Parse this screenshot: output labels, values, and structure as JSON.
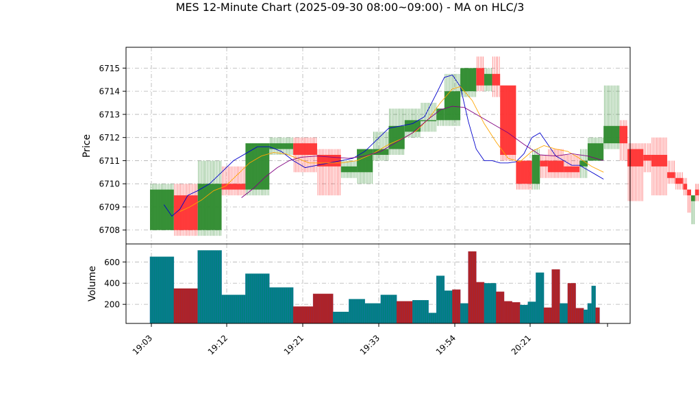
{
  "title": "MES 12-Minute Chart (2025-09-30 08:00~09:00) - MA on HLC/3",
  "colors": {
    "up": "#2e8b2e",
    "down": "#ff3333",
    "ma_fast": "#0000cc",
    "ma_mid": "#ffa500",
    "ma_slow": "#800080",
    "volume_up": "#008080",
    "volume_down": "#b22222",
    "grid": "#b0b0b0"
  },
  "chart_data": [
    {
      "type": "candlestick",
      "ylabel": "Price",
      "ylim": [
        6707.4,
        6715.9
      ],
      "yticks": [
        6708,
        6709,
        6710,
        6711,
        6712,
        6713,
        6714,
        6715
      ],
      "xticks": [
        "19:03",
        "19:12",
        "19:21",
        "19:33",
        "19:54",
        "20:21"
      ],
      "grid": true,
      "candles": [
        {
          "o": 6708.0,
          "c": 6709.75,
          "h": 6710.0,
          "l": 6708.0
        },
        {
          "o": 6709.5,
          "c": 6708.0,
          "h": 6710.0,
          "l": 6707.75
        },
        {
          "o": 6708.0,
          "c": 6710.0,
          "h": 6711.0,
          "l": 6707.75
        },
        {
          "o": 6710.0,
          "c": 6709.75,
          "h": 6710.75,
          "l": 6709.5
        },
        {
          "o": 6709.75,
          "c": 6711.75,
          "h": 6711.75,
          "l": 6709.5
        },
        {
          "o": 6711.5,
          "c": 6711.75,
          "h": 6712.0,
          "l": 6711.25
        },
        {
          "o": 6711.75,
          "c": 6711.25,
          "h": 6712.0,
          "l": 6710.5
        },
        {
          "o": 6711.25,
          "c": 6710.75,
          "h": 6711.5,
          "l": 6709.5
        },
        {
          "o": 6710.5,
          "c": 6710.75,
          "h": 6711.0,
          "l": 6710.25
        },
        {
          "o": 6710.5,
          "c": 6711.5,
          "h": 6711.5,
          "l": 6710.0
        },
        {
          "o": 6711.25,
          "c": 6711.5,
          "h": 6712.25,
          "l": 6711.0
        },
        {
          "o": 6711.5,
          "c": 6712.5,
          "h": 6713.25,
          "l": 6711.25
        },
        {
          "o": 6712.25,
          "c": 6712.75,
          "h": 6713.25,
          "l": 6712.0
        },
        {
          "o": 6712.75,
          "c": 6712.75,
          "h": 6713.5,
          "l": 6712.25
        },
        {
          "o": 6712.75,
          "c": 6713.25,
          "h": 6713.25,
          "l": 6712.5
        },
        {
          "o": 6712.75,
          "c": 6714.0,
          "h": 6714.75,
          "l": 6712.5
        },
        {
          "o": 6714.0,
          "c": 6715.0,
          "h": 6715.0,
          "l": 6713.75
        },
        {
          "o": 6715.0,
          "c": 6714.25,
          "h": 6715.5,
          "l": 6714.0
        },
        {
          "o": 6714.25,
          "c": 6714.75,
          "h": 6715.0,
          "l": 6714.0
        },
        {
          "o": 6714.75,
          "c": 6714.25,
          "h": 6715.5,
          "l": 6713.75
        },
        {
          "o": 6714.25,
          "c": 6711.25,
          "h": 6714.25,
          "l": 6711.0
        },
        {
          "o": 6711.0,
          "c": 6710.0,
          "h": 6711.0,
          "l": 6709.75
        },
        {
          "o": 6710.0,
          "c": 6711.25,
          "h": 6711.5,
          "l": 6709.75
        },
        {
          "o": 6711.0,
          "c": 6710.75,
          "h": 6711.25,
          "l": 6710.25
        },
        {
          "o": 6711.0,
          "c": 6710.5,
          "h": 6711.5,
          "l": 6710.25
        },
        {
          "o": 6710.75,
          "c": 6710.5,
          "h": 6711.25,
          "l": 6710.25
        },
        {
          "o": 6710.75,
          "c": 6711.0,
          "h": 6711.5,
          "l": 6710.25
        },
        {
          "o": 6711.0,
          "c": 6711.75,
          "h": 6712.0,
          "l": 6711.0
        },
        {
          "o": 6711.75,
          "c": 6712.5,
          "h": 6714.25,
          "l": 6711.5
        },
        {
          "o": 6712.5,
          "c": 6711.75,
          "h": 6712.75,
          "l": 6711.0
        },
        {
          "o": 6711.5,
          "c": 6710.75,
          "h": 6711.75,
          "l": 6709.25
        },
        {
          "o": 6711.25,
          "c": 6711.0,
          "h": 6711.75,
          "l": 6710.5
        },
        {
          "o": 6711.25,
          "c": 6710.75,
          "h": 6712.0,
          "l": 6709.5
        },
        {
          "o": 6710.5,
          "c": 6710.25,
          "h": 6711.0,
          "l": 6710.0
        },
        {
          "o": 6710.25,
          "c": 6710.0,
          "h": 6710.5,
          "l": 6709.75
        },
        {
          "o": 6710.0,
          "c": 6709.75,
          "h": 6710.25,
          "l": 6709.5
        },
        {
          "o": 6709.75,
          "c": 6709.5,
          "h": 6709.75,
          "l": 6708.75
        },
        {
          "o": 6709.25,
          "c": 6709.5,
          "h": 6709.5,
          "l": 6708.25
        },
        {
          "o": 6709.75,
          "c": 6709.5,
          "h": 6710.0,
          "l": 6709.25
        }
      ],
      "spans": [
        6,
        6,
        6,
        6,
        6,
        6,
        6,
        6,
        4,
        4,
        4,
        4,
        4,
        4,
        2,
        4,
        4,
        2,
        2,
        2,
        4,
        4,
        2,
        2,
        4,
        4,
        2,
        4,
        4,
        2,
        4,
        2,
        4,
        2,
        2,
        1,
        1,
        1,
        1
      ],
      "ma_fast": [
        [
          3.5,
          6709.1
        ],
        [
          5.5,
          6708.6
        ],
        [
          7.5,
          6708.9
        ],
        [
          9.5,
          6709.5
        ],
        [
          12,
          6709.7
        ],
        [
          15,
          6710.0
        ],
        [
          18,
          6710.5
        ],
        [
          21,
          6711.0
        ],
        [
          24,
          6711.3
        ],
        [
          27,
          6711.6
        ],
        [
          30,
          6711.6
        ],
        [
          33,
          6711.4
        ],
        [
          36,
          6711.0
        ],
        [
          39,
          6710.7
        ],
        [
          42,
          6710.8
        ],
        [
          45,
          6710.9
        ],
        [
          48,
          6711.0
        ],
        [
          51,
          6711.1
        ],
        [
          54,
          6711.4
        ],
        [
          57,
          6711.9
        ],
        [
          60,
          6712.4
        ],
        [
          63,
          6712.5
        ],
        [
          66,
          6712.6
        ],
        [
          69,
          6712.9
        ],
        [
          72,
          6713.9
        ],
        [
          74,
          6714.6
        ],
        [
          76,
          6714.7
        ],
        [
          78,
          6714.2
        ],
        [
          80,
          6712.7
        ],
        [
          82,
          6711.5
        ],
        [
          84,
          6711.0
        ],
        [
          86,
          6711.0
        ],
        [
          88,
          6710.9
        ],
        [
          90,
          6710.9
        ],
        [
          92,
          6710.95
        ],
        [
          94,
          6711.3
        ],
        [
          96,
          6712.0
        ],
        [
          98,
          6712.2
        ],
        [
          100,
          6711.7
        ],
        [
          102,
          6711.2
        ],
        [
          104,
          6711.0
        ],
        [
          106,
          6710.8
        ],
        [
          108,
          6710.8
        ],
        [
          110,
          6710.6
        ],
        [
          112,
          6710.4
        ],
        [
          114,
          6710.2
        ]
      ],
      "ma_mid": [
        [
          7.5,
          6708.8
        ],
        [
          10,
          6709.0
        ],
        [
          13,
          6709.3
        ],
        [
          16,
          6709.7
        ],
        [
          19,
          6709.9
        ],
        [
          22,
          6710.4
        ],
        [
          25,
          6710.9
        ],
        [
          28,
          6711.2
        ],
        [
          31,
          6711.35
        ],
        [
          34,
          6711.3
        ],
        [
          37,
          6711.1
        ],
        [
          40,
          6710.9
        ],
        [
          44,
          6710.9
        ],
        [
          48,
          6710.9
        ],
        [
          52,
          6711.0
        ],
        [
          56,
          6711.3
        ],
        [
          60,
          6711.7
        ],
        [
          64,
          6712.0
        ],
        [
          67,
          6712.3
        ],
        [
          70,
          6712.8
        ],
        [
          73,
          6713.5
        ],
        [
          76,
          6714.1
        ],
        [
          78,
          6714.2
        ],
        [
          81,
          6713.6
        ],
        [
          84,
          6712.6
        ],
        [
          87,
          6711.8
        ],
        [
          90,
          6711.1
        ],
        [
          93,
          6710.95
        ],
        [
          96,
          6711.4
        ],
        [
          99,
          6711.65
        ],
        [
          102,
          6711.5
        ],
        [
          105,
          6711.4
        ],
        [
          108,
          6711.1
        ],
        [
          111,
          6710.75
        ],
        [
          114,
          6710.5
        ]
      ],
      "ma_slow": [
        [
          23,
          6709.4
        ],
        [
          26,
          6709.8
        ],
        [
          29,
          6710.3
        ],
        [
          32,
          6710.7
        ],
        [
          35,
          6711.0
        ],
        [
          38,
          6711.15
        ],
        [
          42,
          6711.2
        ],
        [
          46,
          6711.15
        ],
        [
          50,
          6711.1
        ],
        [
          54,
          6711.2
        ],
        [
          58,
          6711.4
        ],
        [
          62,
          6711.8
        ],
        [
          66,
          6712.2
        ],
        [
          70,
          6712.8
        ],
        [
          73,
          6713.2
        ],
        [
          76,
          6713.35
        ],
        [
          79,
          6713.3
        ],
        [
          82,
          6713.0
        ],
        [
          86,
          6712.6
        ],
        [
          90,
          6712.2
        ],
        [
          94,
          6711.7
        ],
        [
          98,
          6711.25
        ],
        [
          102,
          6711.2
        ],
        [
          106,
          6711.3
        ],
        [
          110,
          6711.2
        ],
        [
          114,
          6711.0
        ]
      ]
    },
    {
      "type": "bar",
      "ylabel": "Volume",
      "ylim": [
        20,
        770
      ],
      "yticks": [
        200,
        400,
        600
      ],
      "values": [
        650,
        350,
        710,
        290,
        490,
        360,
        180,
        300,
        130,
        250,
        210,
        290,
        230,
        240,
        120,
        470,
        330,
        340,
        210,
        700,
        410,
        400,
        320,
        230,
        220,
        195,
        225,
        500,
        170,
        530,
        210,
        400,
        165,
        150,
        210,
        375,
        170
      ],
      "directions": [
        "up",
        "down",
        "up",
        "up",
        "up",
        "up",
        "down",
        "down",
        "up",
        "up",
        "up",
        "up",
        "down",
        "up",
        "up",
        "up",
        "up",
        "down",
        "up",
        "down",
        "down",
        "up",
        "down",
        "down",
        "down",
        "up",
        "up",
        "up",
        "down",
        "down",
        "up",
        "down",
        "down",
        "up",
        "up",
        "up",
        "down"
      ],
      "spans": [
        6,
        6,
        6,
        6,
        6,
        6,
        5,
        5,
        4,
        4,
        4,
        4,
        4,
        4,
        2,
        2,
        2,
        2,
        2,
        2,
        2,
        3,
        2,
        2,
        2,
        2,
        2,
        2,
        2,
        2,
        2,
        2,
        2,
        1,
        1,
        1,
        1
      ]
    }
  ]
}
